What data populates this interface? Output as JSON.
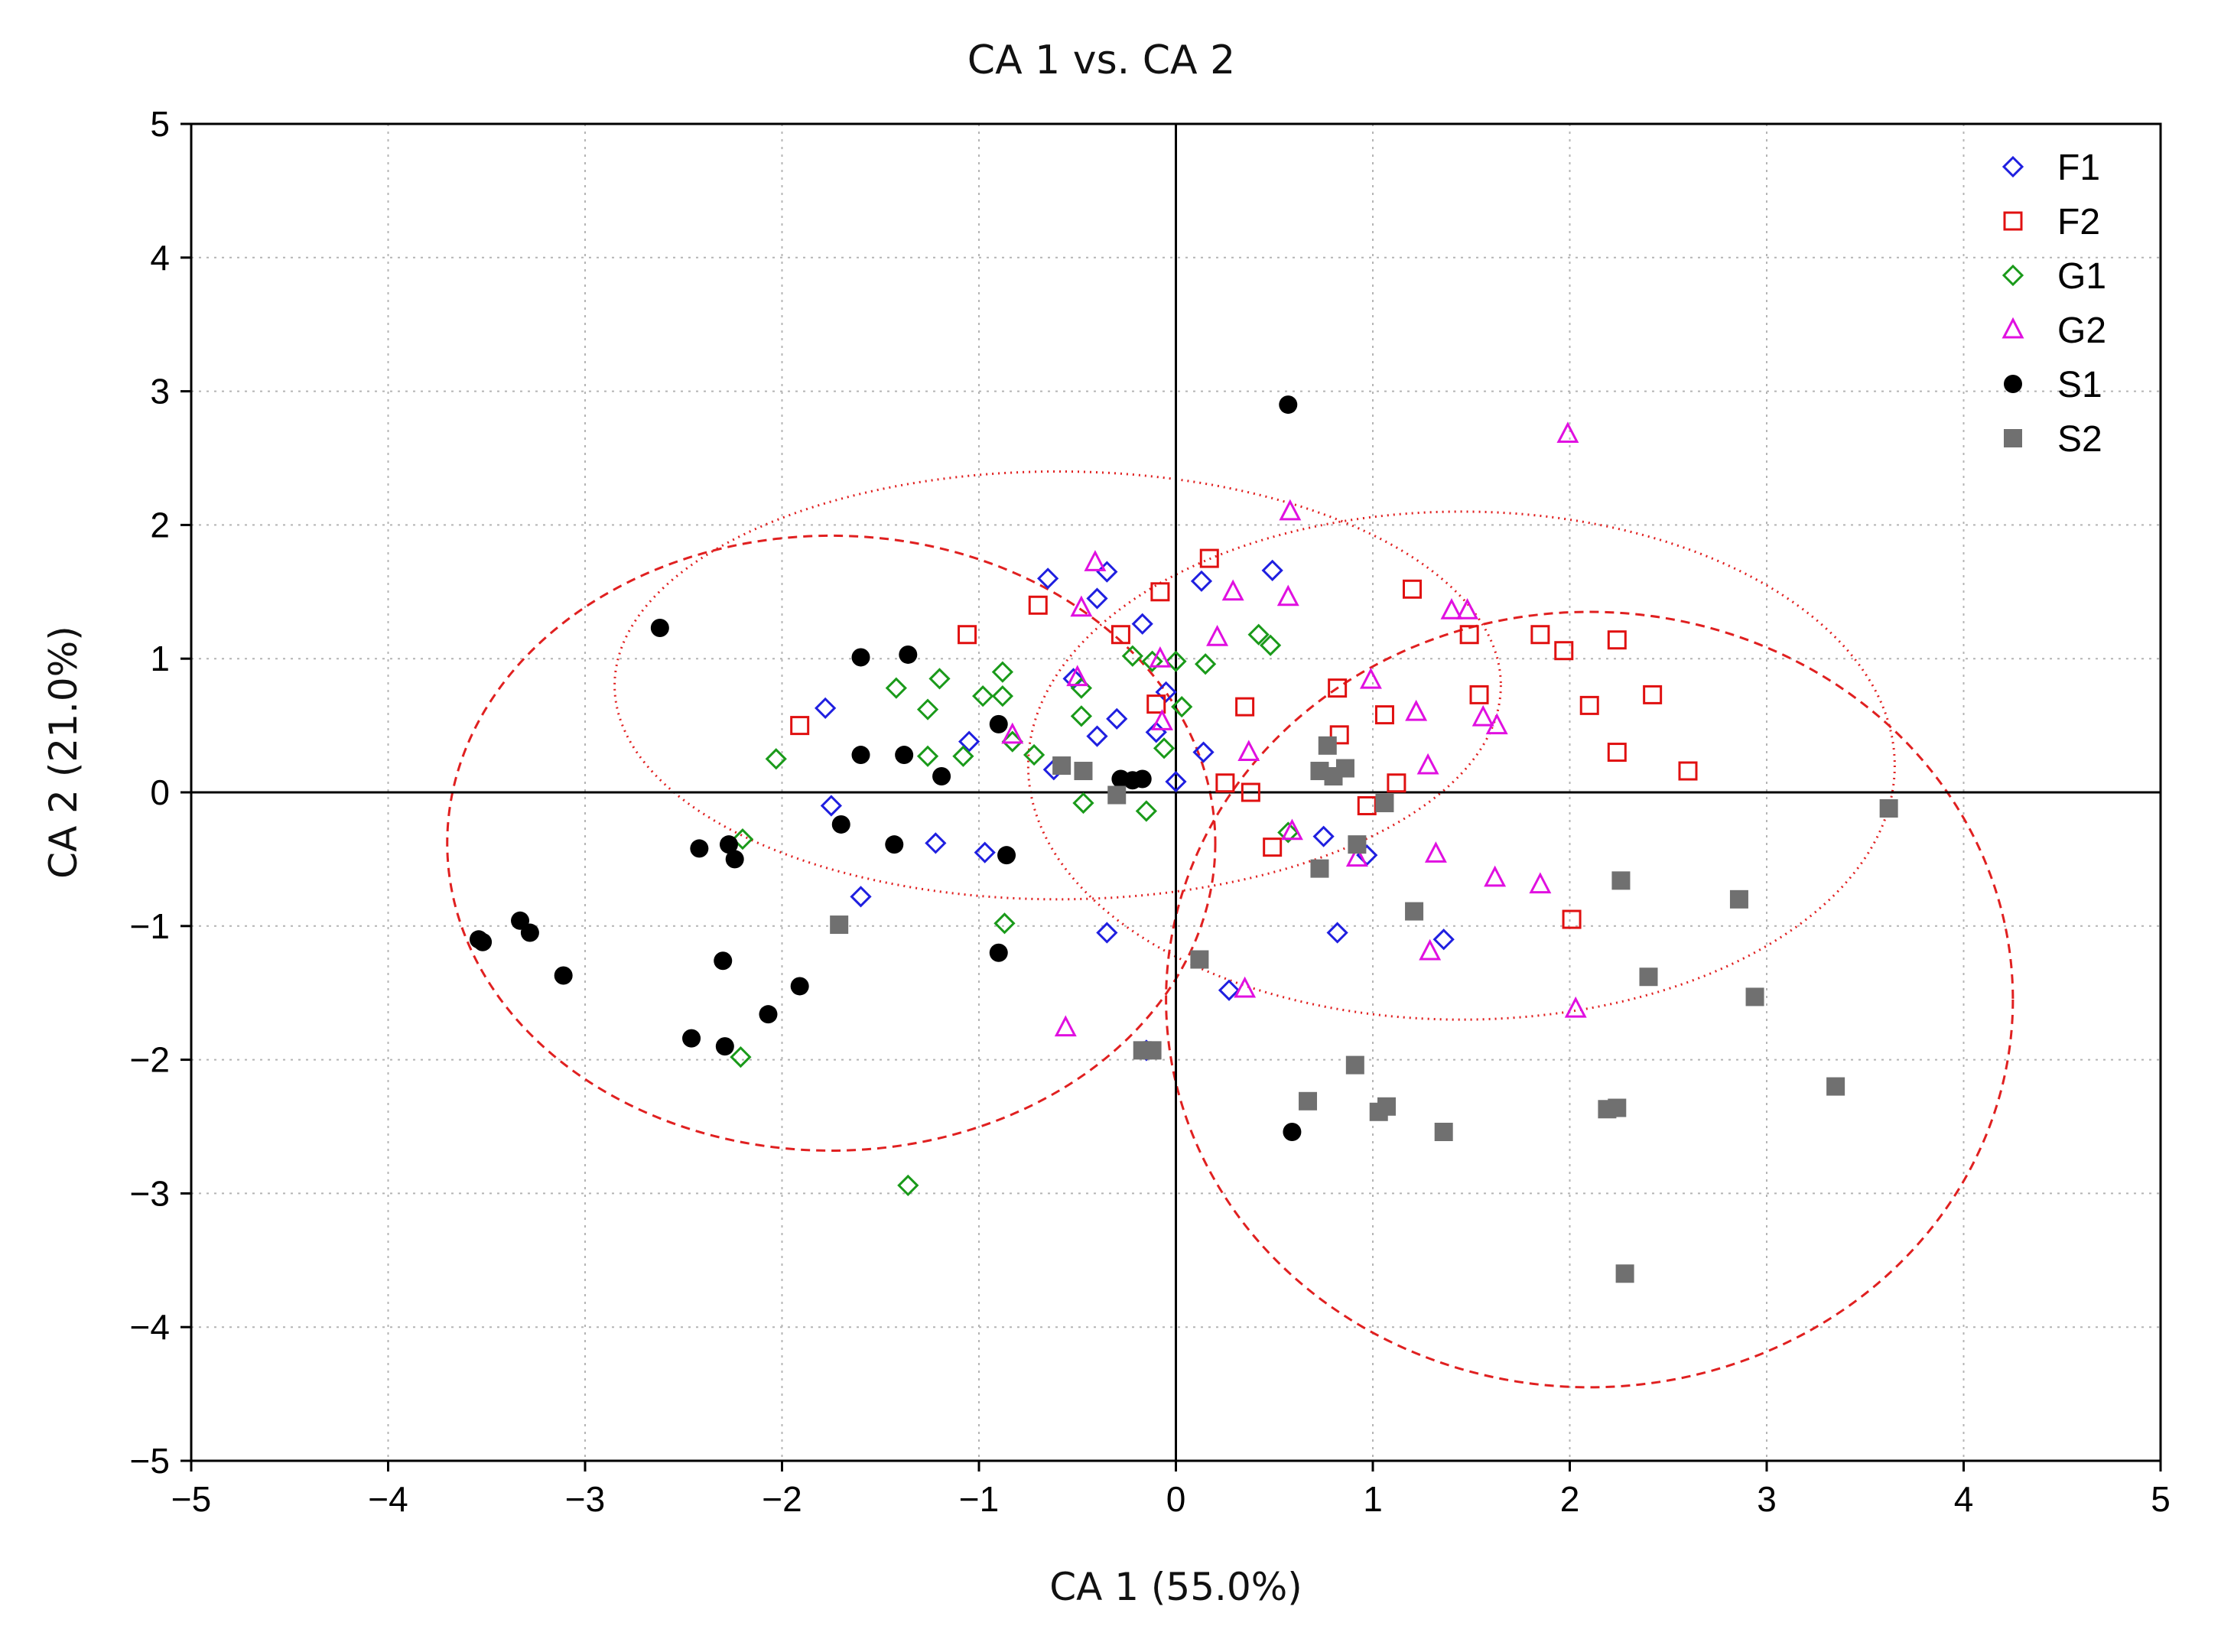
{
  "chart_data": {
    "type": "scatter",
    "title": "CA 1 vs. CA 2",
    "xlabel": "CA 1 (55.0%)",
    "ylabel": "CA 2 (21.0%)",
    "xlim": [
      -5,
      5
    ],
    "ylim": [
      -5,
      5
    ],
    "xticks": [
      -5,
      -4,
      -3,
      -2,
      -1,
      0,
      1,
      2,
      3,
      4,
      5
    ],
    "yticks": [
      -5,
      -4,
      -3,
      -2,
      -1,
      0,
      1,
      2,
      3,
      4,
      5
    ],
    "xtick_labels": [
      "−5",
      "−4",
      "−3",
      "−2",
      "−1",
      "0",
      "1",
      "2",
      "3",
      "4",
      "5"
    ],
    "ytick_labels": [
      "−5",
      "−4",
      "−3",
      "−2",
      "−1",
      "0",
      "1",
      "2",
      "3",
      "4",
      "5"
    ],
    "grid": true,
    "legend_position": "top-right",
    "series": [
      {
        "name": "F1",
        "marker": "diamond-open",
        "color": "#1f1fe0",
        "points": [
          [
            -0.65,
            1.6
          ],
          [
            -0.35,
            1.65
          ],
          [
            -0.4,
            1.45
          ],
          [
            0.13,
            1.58
          ],
          [
            0.49,
            1.66
          ],
          [
            -0.17,
            1.26
          ],
          [
            -0.52,
            0.85
          ],
          [
            -0.3,
            0.55
          ],
          [
            -0.4,
            0.42
          ],
          [
            -0.1,
            0.45
          ],
          [
            -0.05,
            0.75
          ],
          [
            -1.78,
            0.63
          ],
          [
            -1.05,
            0.38
          ],
          [
            -0.62,
            0.17
          ],
          [
            0.14,
            0.3
          ],
          [
            0.0,
            0.08
          ],
          [
            -1.75,
            -0.1
          ],
          [
            -1.22,
            -0.38
          ],
          [
            -0.97,
            -0.45
          ],
          [
            -1.6,
            -0.78
          ],
          [
            -0.35,
            -1.05
          ],
          [
            0.75,
            -0.33
          ],
          [
            0.97,
            -0.47
          ],
          [
            0.82,
            -1.05
          ],
          [
            1.36,
            -1.1
          ],
          [
            0.27,
            -1.48
          ],
          [
            -0.15,
            -1.93
          ]
        ]
      },
      {
        "name": "F2",
        "marker": "square-open",
        "color": "#e01010",
        "points": [
          [
            0.17,
            1.75
          ],
          [
            -0.08,
            1.5
          ],
          [
            -1.06,
            1.18
          ],
          [
            -0.7,
            1.4
          ],
          [
            -0.28,
            1.18
          ],
          [
            1.2,
            1.52
          ],
          [
            1.49,
            1.18
          ],
          [
            1.85,
            1.18
          ],
          [
            1.97,
            1.06
          ],
          [
            2.24,
            1.14
          ],
          [
            -1.91,
            0.5
          ],
          [
            -0.1,
            0.66
          ],
          [
            0.35,
            0.64
          ],
          [
            0.82,
            0.78
          ],
          [
            1.06,
            0.58
          ],
          [
            1.54,
            0.73
          ],
          [
            2.1,
            0.65
          ],
          [
            2.42,
            0.73
          ],
          [
            2.24,
            0.3
          ],
          [
            2.6,
            0.16
          ],
          [
            0.83,
            0.43
          ],
          [
            0.25,
            0.07
          ],
          [
            0.38,
            0.0
          ],
          [
            1.12,
            0.07
          ],
          [
            0.97,
            -0.1
          ],
          [
            0.49,
            -0.41
          ],
          [
            2.01,
            -0.95
          ]
        ]
      },
      {
        "name": "G1",
        "marker": "diamond-open",
        "color": "#1a9a1a",
        "points": [
          [
            0.42,
            1.18
          ],
          [
            0.48,
            1.1
          ],
          [
            -0.22,
            1.02
          ],
          [
            -0.12,
            0.98
          ],
          [
            0.0,
            0.98
          ],
          [
            0.15,
            0.96
          ],
          [
            -0.88,
            0.9
          ],
          [
            -1.2,
            0.85
          ],
          [
            -1.42,
            0.78
          ],
          [
            -0.98,
            0.72
          ],
          [
            -0.88,
            0.72
          ],
          [
            -1.26,
            0.62
          ],
          [
            -0.48,
            0.78
          ],
          [
            -0.48,
            0.57
          ],
          [
            0.03,
            0.64
          ],
          [
            -0.06,
            0.33
          ],
          [
            -2.03,
            0.25
          ],
          [
            -1.26,
            0.27
          ],
          [
            -1.08,
            0.27
          ],
          [
            -0.83,
            0.38
          ],
          [
            -0.72,
            0.28
          ],
          [
            -0.47,
            -0.08
          ],
          [
            -0.15,
            -0.14
          ],
          [
            -2.2,
            -0.35
          ],
          [
            0.57,
            -0.3
          ],
          [
            -0.87,
            -0.98
          ],
          [
            -2.21,
            -1.98
          ],
          [
            -1.36,
            -2.94
          ]
        ]
      },
      {
        "name": "G2",
        "marker": "triangle-open",
        "color": "#e010e0",
        "points": [
          [
            1.99,
            2.68
          ],
          [
            0.58,
            2.1
          ],
          [
            -0.41,
            1.72
          ],
          [
            -0.48,
            1.38
          ],
          [
            0.29,
            1.5
          ],
          [
            0.57,
            1.46
          ],
          [
            1.4,
            1.36
          ],
          [
            1.48,
            1.36
          ],
          [
            0.21,
            1.16
          ],
          [
            -0.08,
            1.0
          ],
          [
            0.99,
            0.84
          ],
          [
            -0.5,
            0.86
          ],
          [
            1.22,
            0.6
          ],
          [
            1.56,
            0.56
          ],
          [
            1.63,
            0.5
          ],
          [
            -0.07,
            0.53
          ],
          [
            0.37,
            0.3
          ],
          [
            1.28,
            0.2
          ],
          [
            -0.83,
            0.43
          ],
          [
            0.59,
            -0.29
          ],
          [
            0.92,
            -0.49
          ],
          [
            1.32,
            -0.46
          ],
          [
            1.62,
            -0.64
          ],
          [
            1.85,
            -0.69
          ],
          [
            1.29,
            -1.19
          ],
          [
            0.35,
            -1.47
          ],
          [
            2.03,
            -1.62
          ],
          [
            -0.56,
            -1.76
          ]
        ]
      },
      {
        "name": "S1",
        "marker": "circle-filled",
        "color": "#000000",
        "points": [
          [
            0.57,
            2.9
          ],
          [
            -2.62,
            1.23
          ],
          [
            -1.6,
            1.01
          ],
          [
            -1.36,
            1.03
          ],
          [
            -0.9,
            0.51
          ],
          [
            -1.6,
            0.28
          ],
          [
            -1.38,
            0.28
          ],
          [
            -1.19,
            0.12
          ],
          [
            -0.28,
            0.1
          ],
          [
            -0.22,
            0.09
          ],
          [
            -0.17,
            0.1
          ],
          [
            -1.7,
            -0.24
          ],
          [
            -1.43,
            -0.39
          ],
          [
            -2.42,
            -0.42
          ],
          [
            -2.27,
            -0.39
          ],
          [
            -2.24,
            -0.5
          ],
          [
            -0.86,
            -0.47
          ],
          [
            -3.54,
            -1.1
          ],
          [
            -3.52,
            -1.12
          ],
          [
            -3.33,
            -0.96
          ],
          [
            -3.28,
            -1.05
          ],
          [
            -3.11,
            -1.37
          ],
          [
            -2.3,
            -1.26
          ],
          [
            -1.91,
            -1.45
          ],
          [
            -2.07,
            -1.66
          ],
          [
            -2.46,
            -1.84
          ],
          [
            -2.29,
            -1.9
          ],
          [
            -0.9,
            -1.2
          ],
          [
            0.59,
            -2.54
          ]
        ]
      },
      {
        "name": "S2",
        "marker": "square-filled",
        "color": "#707070",
        "points": [
          [
            -0.58,
            0.2
          ],
          [
            -0.47,
            0.16
          ],
          [
            -0.3,
            -0.02
          ],
          [
            0.77,
            0.35
          ],
          [
            0.73,
            0.16
          ],
          [
            0.8,
            0.12
          ],
          [
            0.86,
            0.18
          ],
          [
            1.06,
            -0.08
          ],
          [
            0.92,
            -0.39
          ],
          [
            0.73,
            -0.57
          ],
          [
            1.21,
            -0.89
          ],
          [
            2.26,
            -0.66
          ],
          [
            2.86,
            -0.8
          ],
          [
            3.62,
            -0.12
          ],
          [
            -1.71,
            -0.99
          ],
          [
            0.12,
            -1.25
          ],
          [
            2.4,
            -1.38
          ],
          [
            2.94,
            -1.53
          ],
          [
            -0.12,
            -1.93
          ],
          [
            -0.17,
            -1.93
          ],
          [
            0.91,
            -2.04
          ],
          [
            0.67,
            -2.31
          ],
          [
            1.07,
            -2.35
          ],
          [
            1.03,
            -2.39
          ],
          [
            1.36,
            -2.54
          ],
          [
            2.19,
            -2.37
          ],
          [
            2.24,
            -2.36
          ],
          [
            3.35,
            -2.2
          ],
          [
            2.28,
            -3.6
          ]
        ]
      }
    ],
    "ellipses": [
      {
        "group": "F",
        "style": "dotted",
        "color": "#e02020",
        "center": [
          -0.6,
          0.8
        ],
        "semi_axes": [
          2.25,
          1.6
        ],
        "rotation_deg": 0
      },
      {
        "group": "G",
        "style": "dotted",
        "color": "#e02020",
        "center": [
          1.45,
          0.2
        ],
        "semi_axes": [
          2.2,
          1.9
        ],
        "rotation_deg": 0
      },
      {
        "group": "S1",
        "style": "dashed",
        "color": "#e02020",
        "center": [
          -1.75,
          -0.38
        ],
        "semi_axes": [
          1.95,
          2.3
        ],
        "rotation_deg": 0
      },
      {
        "group": "S2",
        "style": "dashed",
        "color": "#e02020",
        "center": [
          2.1,
          -1.55
        ],
        "semi_axes": [
          2.15,
          2.9
        ],
        "rotation_deg": 0
      }
    ]
  }
}
